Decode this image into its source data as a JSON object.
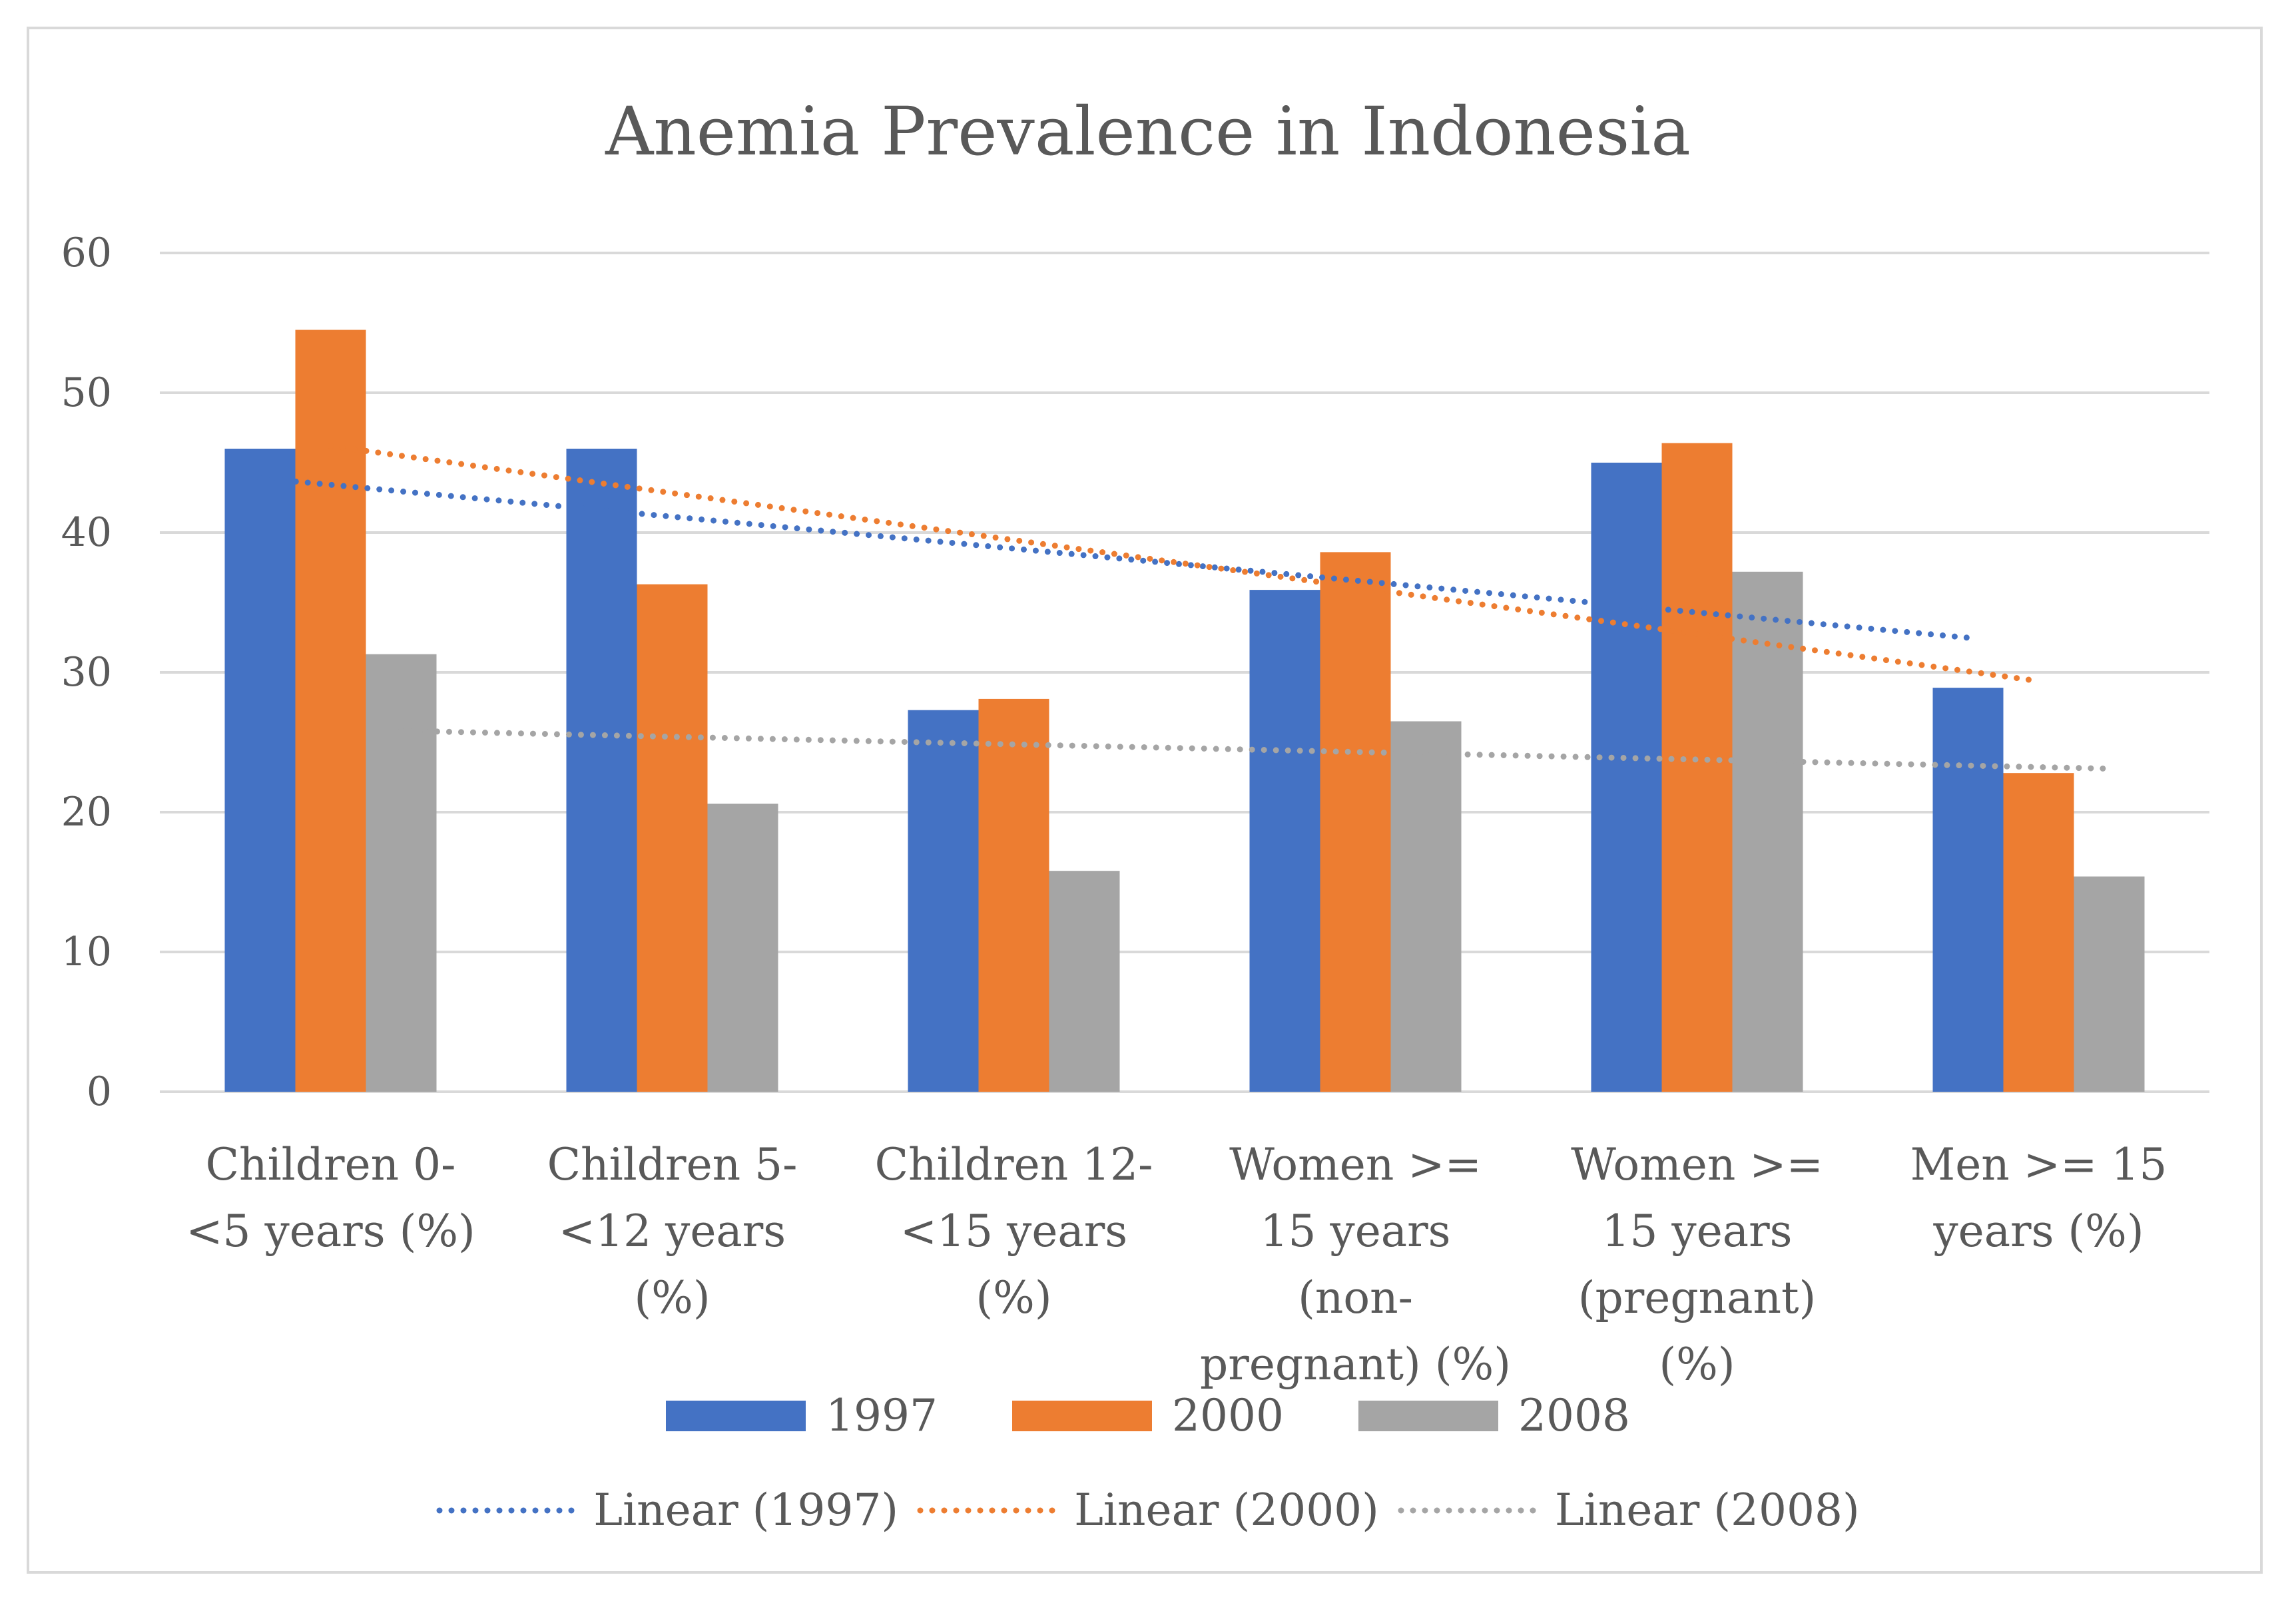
{
  "chart_data": {
    "type": "bar",
    "title": "Anemia Prevalence in Indonesia",
    "categories": [
      "Children 0-<5 years (%)",
      "Children 5-<12 years (%)",
      "Children 12-<15 years (%)",
      "Women >= 15 years (non-pregnant) (%)",
      "Women >= 15 years (pregnant) (%)",
      "Men >= 15 years (%)"
    ],
    "series": [
      {
        "name": "1997",
        "color": "#4472c4",
        "values": [
          46.0,
          46.0,
          27.3,
          35.9,
          45.0,
          28.9
        ]
      },
      {
        "name": "2000",
        "color": "#ed7d31",
        "values": [
          54.5,
          36.3,
          28.1,
          38.6,
          46.4,
          22.8
        ]
      },
      {
        "name": "2008",
        "color": "#a5a5a5",
        "values": [
          31.3,
          20.6,
          15.8,
          26.5,
          37.2,
          15.4
        ]
      }
    ],
    "trendlines": [
      {
        "name": "Linear (1997)",
        "series": "1997",
        "type": "linear",
        "color": "#4472c4"
      },
      {
        "name": "Linear (2000)",
        "series": "2000",
        "type": "linear",
        "color": "#ed7d31"
      },
      {
        "name": "Linear (2008)",
        "series": "2008",
        "type": "linear",
        "color": "#a5a5a5"
      }
    ],
    "xlabel": "",
    "ylabel": "",
    "ylim": [
      0,
      60
    ],
    "yticks": [
      "0",
      "10",
      "20",
      "30",
      "40",
      "50",
      "60"
    ],
    "grid": true,
    "legend_position": "bottom"
  }
}
